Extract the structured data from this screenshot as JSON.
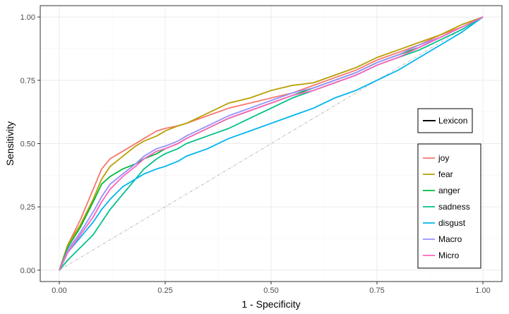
{
  "chart_data": {
    "type": "line",
    "xlabel": "1 - Specificity",
    "ylabel": "Sensitivity",
    "xlim": [
      0,
      1
    ],
    "ylim": [
      0,
      1
    ],
    "xticks": [
      "0.00",
      "0.25",
      "0.50",
      "0.75",
      "1.00"
    ],
    "yticks": [
      "0.00",
      "0.25",
      "0.50",
      "0.75",
      "1.00"
    ],
    "grid": true,
    "diagonal_reference": true,
    "lexicon_legend": {
      "label": "Lexicon",
      "color": "#000000",
      "placement": "right"
    },
    "legend": {
      "placement": "right"
    },
    "series": [
      {
        "name": "joy",
        "color": "#F8766D",
        "x": [
          0,
          0.02,
          0.05,
          0.08,
          0.1,
          0.12,
          0.15,
          0.18,
          0.2,
          0.23,
          0.25,
          0.28,
          0.3,
          0.35,
          0.4,
          0.45,
          0.5,
          0.55,
          0.6,
          0.65,
          0.7,
          0.75,
          0.8,
          0.85,
          0.9,
          0.95,
          1.0
        ],
        "y": [
          0,
          0.1,
          0.2,
          0.32,
          0.4,
          0.44,
          0.47,
          0.5,
          0.52,
          0.55,
          0.56,
          0.57,
          0.58,
          0.61,
          0.64,
          0.66,
          0.68,
          0.7,
          0.73,
          0.76,
          0.79,
          0.83,
          0.86,
          0.89,
          0.93,
          0.96,
          1.0
        ]
      },
      {
        "name": "fear",
        "color": "#B79F00",
        "x": [
          0,
          0.02,
          0.05,
          0.08,
          0.1,
          0.12,
          0.15,
          0.18,
          0.2,
          0.23,
          0.25,
          0.28,
          0.3,
          0.35,
          0.4,
          0.45,
          0.5,
          0.55,
          0.6,
          0.65,
          0.7,
          0.75,
          0.8,
          0.85,
          0.9,
          0.95,
          1.0
        ],
        "y": [
          0,
          0.1,
          0.18,
          0.28,
          0.36,
          0.41,
          0.45,
          0.49,
          0.51,
          0.53,
          0.55,
          0.57,
          0.58,
          0.62,
          0.66,
          0.68,
          0.71,
          0.73,
          0.74,
          0.77,
          0.8,
          0.84,
          0.87,
          0.9,
          0.93,
          0.97,
          1.0
        ]
      },
      {
        "name": "anger",
        "color": "#00BA38",
        "x": [
          0,
          0.02,
          0.05,
          0.08,
          0.1,
          0.12,
          0.15,
          0.18,
          0.2,
          0.23,
          0.25,
          0.28,
          0.3,
          0.35,
          0.4,
          0.45,
          0.5,
          0.55,
          0.6,
          0.65,
          0.7,
          0.75,
          0.8,
          0.85,
          0.9,
          0.95,
          1.0
        ],
        "y": [
          0,
          0.09,
          0.17,
          0.27,
          0.34,
          0.37,
          0.4,
          0.42,
          0.44,
          0.46,
          0.48,
          0.5,
          0.52,
          0.56,
          0.6,
          0.63,
          0.66,
          0.69,
          0.72,
          0.75,
          0.78,
          0.82,
          0.85,
          0.88,
          0.92,
          0.96,
          1.0
        ]
      },
      {
        "name": "sadness",
        "color": "#00C08B",
        "x": [
          0,
          0.02,
          0.05,
          0.08,
          0.1,
          0.12,
          0.15,
          0.18,
          0.2,
          0.23,
          0.25,
          0.28,
          0.3,
          0.35,
          0.4,
          0.45,
          0.5,
          0.55,
          0.6,
          0.65,
          0.7,
          0.75,
          0.8,
          0.85,
          0.9,
          0.95,
          1.0
        ],
        "y": [
          0,
          0.04,
          0.09,
          0.14,
          0.19,
          0.24,
          0.3,
          0.36,
          0.4,
          0.44,
          0.46,
          0.48,
          0.5,
          0.53,
          0.56,
          0.6,
          0.64,
          0.68,
          0.71,
          0.74,
          0.77,
          0.81,
          0.84,
          0.87,
          0.91,
          0.95,
          1.0
        ]
      },
      {
        "name": "disgust",
        "color": "#00B4F0",
        "x": [
          0,
          0.02,
          0.05,
          0.08,
          0.1,
          0.12,
          0.15,
          0.18,
          0.2,
          0.23,
          0.25,
          0.28,
          0.3,
          0.35,
          0.4,
          0.45,
          0.5,
          0.55,
          0.6,
          0.65,
          0.7,
          0.75,
          0.8,
          0.85,
          0.9,
          0.95,
          1.0
        ],
        "y": [
          0,
          0.07,
          0.13,
          0.19,
          0.24,
          0.28,
          0.33,
          0.36,
          0.38,
          0.4,
          0.41,
          0.43,
          0.45,
          0.48,
          0.52,
          0.55,
          0.58,
          0.61,
          0.64,
          0.68,
          0.71,
          0.75,
          0.79,
          0.84,
          0.89,
          0.94,
          1.0
        ]
      },
      {
        "name": "Macro",
        "color": "#9590FF",
        "x": [
          0,
          0.02,
          0.05,
          0.08,
          0.1,
          0.12,
          0.15,
          0.18,
          0.2,
          0.23,
          0.25,
          0.28,
          0.3,
          0.35,
          0.4,
          0.45,
          0.5,
          0.55,
          0.6,
          0.65,
          0.7,
          0.75,
          0.8,
          0.85,
          0.9,
          0.95,
          1.0
        ],
        "y": [
          0,
          0.08,
          0.15,
          0.23,
          0.29,
          0.34,
          0.38,
          0.42,
          0.45,
          0.48,
          0.49,
          0.51,
          0.53,
          0.57,
          0.61,
          0.64,
          0.67,
          0.7,
          0.72,
          0.75,
          0.78,
          0.82,
          0.85,
          0.89,
          0.92,
          0.96,
          1.0
        ]
      },
      {
        "name": "Micro",
        "color": "#FF62BC",
        "x": [
          0,
          0.02,
          0.05,
          0.08,
          0.1,
          0.12,
          0.15,
          0.18,
          0.2,
          0.23,
          0.25,
          0.28,
          0.3,
          0.35,
          0.4,
          0.45,
          0.5,
          0.55,
          0.6,
          0.65,
          0.7,
          0.75,
          0.8,
          0.85,
          0.9,
          0.95,
          1.0
        ],
        "y": [
          0,
          0.07,
          0.14,
          0.21,
          0.27,
          0.32,
          0.37,
          0.41,
          0.44,
          0.47,
          0.48,
          0.5,
          0.52,
          0.56,
          0.6,
          0.63,
          0.66,
          0.69,
          0.71,
          0.74,
          0.77,
          0.81,
          0.84,
          0.88,
          0.92,
          0.96,
          1.0
        ]
      }
    ]
  }
}
